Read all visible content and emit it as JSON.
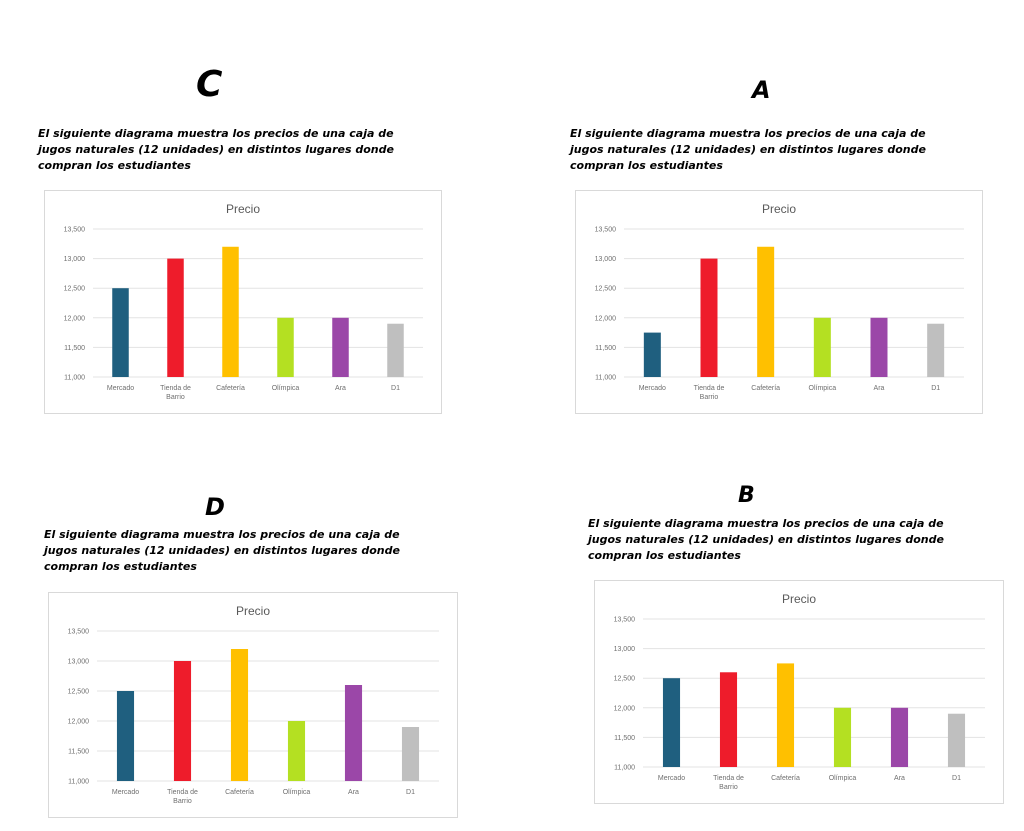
{
  "panels": [
    {
      "letter": "C",
      "desc_lines": [
        "El siguiente diagrama muestra los precios de una caja de",
        "jugos naturales (12 unidades) en distintos lugares donde",
        "compran los estudiantes"
      ]
    },
    {
      "letter": "A",
      "desc_lines": [
        "El siguiente diagrama muestra los precios de una caja de",
        "jugos naturales (12 unidades) en distintos lugares donde",
        "compran los estudiantes"
      ]
    },
    {
      "letter": "D",
      "desc_lines": [
        "El siguiente diagrama muestra los precios de una caja de",
        "jugos naturales (12 unidades) en distintos lugares donde",
        "compran los estudiantes"
      ]
    },
    {
      "letter": "B",
      "desc_lines": [
        "El siguiente diagrama muestra los precios de una caja de",
        "jugos naturales (12 unidades) en distintos lugares donde",
        "compran los estudiantes"
      ]
    }
  ],
  "chart_data": [
    {
      "type": "bar",
      "title": "Precio",
      "categories": [
        "Mercado",
        "Tienda de Barrio",
        "Cafetería",
        "Olímpica",
        "Ara",
        "D1"
      ],
      "values": [
        12500,
        13000,
        13200,
        12000,
        12000,
        11900
      ],
      "colors": [
        "#1f5f7f",
        "#ee1c2b",
        "#ffc000",
        "#b4e022",
        "#9b47a8",
        "#bfbfbf"
      ],
      "ylim": [
        11000,
        13500
      ],
      "yticks": [
        "11,000",
        "11,500",
        "12,000",
        "12,500",
        "13,000",
        "13,500"
      ],
      "grid": true
    },
    {
      "type": "bar",
      "title": "Precio",
      "categories": [
        "Mercado",
        "Tienda de Barrio",
        "Cafetería",
        "Olímpica",
        "Ara",
        "D1"
      ],
      "values": [
        11750,
        13000,
        13200,
        12000,
        12000,
        11900
      ],
      "colors": [
        "#1f5f7f",
        "#ee1c2b",
        "#ffc000",
        "#b4e022",
        "#9b47a8",
        "#bfbfbf"
      ],
      "ylim": [
        11000,
        13500
      ],
      "yticks": [
        "11,000",
        "11,500",
        "12,000",
        "12,500",
        "13,000",
        "13,500"
      ],
      "grid": true
    },
    {
      "type": "bar",
      "title": "Precio",
      "categories": [
        "Mercado",
        "Tienda de Barrio",
        "Cafetería",
        "Olímpica",
        "Ara",
        "D1"
      ],
      "values": [
        12500,
        13000,
        13200,
        12000,
        12600,
        11900
      ],
      "colors": [
        "#1f5f7f",
        "#ee1c2b",
        "#ffc000",
        "#b4e022",
        "#9b47a8",
        "#bfbfbf"
      ],
      "ylim": [
        11000,
        13500
      ],
      "yticks": [
        "11,000",
        "11,500",
        "12,000",
        "12,500",
        "13,000",
        "13,500"
      ],
      "grid": true
    },
    {
      "type": "bar",
      "title": "Precio",
      "categories": [
        "Mercado",
        "Tienda de Barrio",
        "Cafetería",
        "Olímpica",
        "Ara",
        "D1"
      ],
      "values": [
        12500,
        12600,
        12750,
        12000,
        12000,
        11900
      ],
      "colors": [
        "#1f5f7f",
        "#ee1c2b",
        "#ffc000",
        "#b4e022",
        "#9b47a8",
        "#bfbfbf"
      ],
      "ylim": [
        11000,
        13500
      ],
      "yticks": [
        "11,000",
        "11,500",
        "12,000",
        "12,500",
        "13,000",
        "13,500"
      ],
      "grid": true
    }
  ]
}
